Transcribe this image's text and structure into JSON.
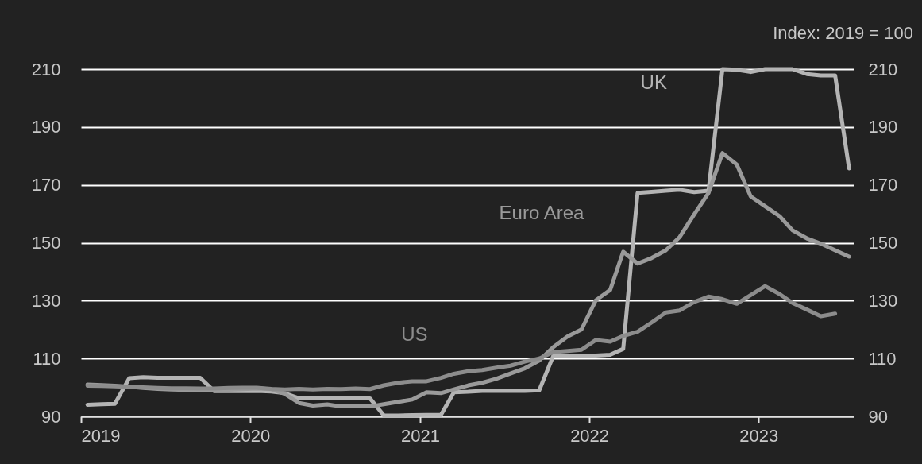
{
  "chart_data": {
    "type": "line",
    "y2label": "Index: 2019 = 100",
    "x": [
      "2019-01-15",
      "2019-02-15",
      "2019-03-15",
      "2019-04-15",
      "2019-05-15",
      "2019-06-15",
      "2019-07-15",
      "2019-08-15",
      "2019-09-15",
      "2019-10-15",
      "2019-11-15",
      "2019-12-15",
      "2020-01-15",
      "2020-02-15",
      "2020-03-15",
      "2020-04-15",
      "2020-05-15",
      "2020-06-15",
      "2020-07-15",
      "2020-08-15",
      "2020-09-15",
      "2020-10-15",
      "2020-11-15",
      "2020-12-15",
      "2021-01-15",
      "2021-02-15",
      "2021-03-15",
      "2021-04-15",
      "2021-05-15",
      "2021-06-15",
      "2021-07-15",
      "2021-08-15",
      "2021-09-15",
      "2021-10-15",
      "2021-11-15",
      "2021-12-15",
      "2022-01-15",
      "2022-02-15",
      "2022-03-15",
      "2022-04-15",
      "2022-05-15",
      "2022-06-15",
      "2022-07-15",
      "2022-08-15",
      "2022-09-15",
      "2022-10-15",
      "2022-11-15",
      "2022-12-15",
      "2023-01-15",
      "2023-02-15",
      "2023-03-15",
      "2023-04-15",
      "2023-05-15",
      "2023-06-15",
      "2023-07-15"
    ],
    "series": [
      {
        "name": "UK",
        "color": "#b4b4b4",
        "values": [
          94,
          94.2,
          94.3,
          103.2,
          103.5,
          103.3,
          103.3,
          103.3,
          103.3,
          98.7,
          98.7,
          98.7,
          98.8,
          98.6,
          98,
          96.2,
          96.2,
          96.2,
          96.2,
          96.2,
          96.2,
          90.3,
          90.3,
          90.4,
          90.5,
          90.5,
          98.3,
          98.5,
          98.8,
          98.8,
          98.8,
          98.8,
          99,
          110.8,
          111,
          111,
          111,
          111.3,
          113.3,
          167.2,
          167.6,
          168,
          168.3,
          167.5,
          168,
          210,
          209.8,
          209,
          210,
          210,
          210,
          208.3,
          207.8,
          207.8,
          175.7
        ]
      },
      {
        "name": "Euro Area",
        "color": "#9a9a9a",
        "values": [
          101,
          100.8,
          100.6,
          100.2,
          99.8,
          99.5,
          99.3,
          99.1,
          99,
          99,
          99.2,
          99.4,
          99.6,
          99.4,
          97.8,
          94.6,
          93.7,
          94.1,
          93.4,
          93.4,
          93.4,
          94.2,
          95,
          95.8,
          98.3,
          98,
          99.3,
          100.7,
          101.6,
          103,
          104.8,
          106.6,
          109.3,
          113.9,
          117.6,
          120,
          130.1,
          133.7,
          146.9,
          142.8,
          144.7,
          147.4,
          152,
          159.8,
          167.2,
          181,
          177,
          166,
          162.6,
          159.2,
          154.3,
          151.5,
          149.7,
          147.4,
          145.2
        ]
      },
      {
        "name": "US",
        "color": "#8c8c8c",
        "values": [
          100.6,
          100.5,
          100.4,
          100.2,
          100,
          99.8,
          99.7,
          99.7,
          99.6,
          99.6,
          99.8,
          99.9,
          99.9,
          99.5,
          99.3,
          99.5,
          99.3,
          99.5,
          99.4,
          99.6,
          99.4,
          100.7,
          101.6,
          102.1,
          102.1,
          103.3,
          104.7,
          105.6,
          106,
          106.8,
          107.5,
          108.9,
          110,
          112.2,
          112.6,
          113,
          116.4,
          115.8,
          117.8,
          119.2,
          122.4,
          125.9,
          126.6,
          129.5,
          131.4,
          130.5,
          128.9,
          131.9,
          135,
          132.3,
          129.2,
          126.9,
          124.6,
          125.5,
          null
        ]
      }
    ],
    "xlim": [
      "2019-01-01",
      "2023-07-25"
    ],
    "xticks": [
      "2019",
      "2020",
      "2021",
      "2022",
      "2023"
    ],
    "ylim": [
      90,
      210
    ],
    "yticks": [
      90,
      110,
      130,
      150,
      170,
      190,
      210
    ],
    "y2lim": [
      90,
      210
    ],
    "y2ticks": [
      90,
      110,
      130,
      150,
      170,
      190,
      210
    ],
    "grid": "y",
    "marker": "none",
    "line_style": "solid",
    "legend": false
  }
}
